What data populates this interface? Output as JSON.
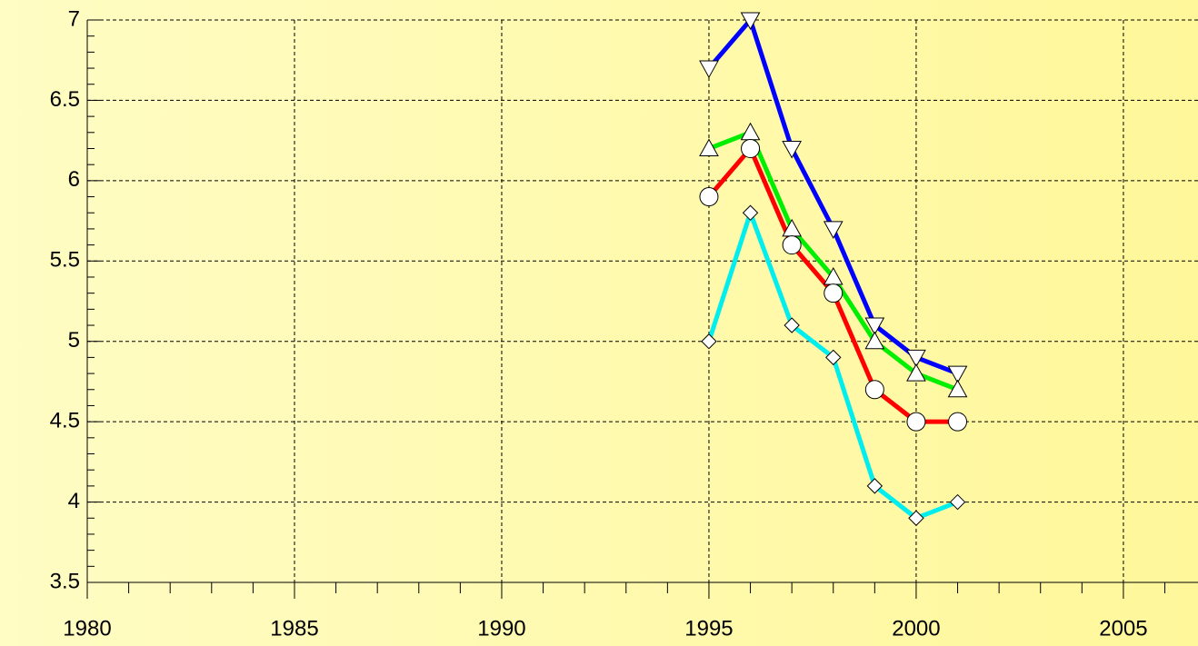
{
  "chart_data": {
    "type": "line",
    "x": [
      1995,
      1996,
      1997,
      1998,
      1999,
      2000,
      2001
    ],
    "series": [
      {
        "color": "#0000ff",
        "marker": "triangle-down",
        "values": [
          6.7,
          7.0,
          6.2,
          5.7,
          5.1,
          4.9,
          4.8
        ]
      },
      {
        "color": "#00ee00",
        "marker": "triangle-up",
        "values": [
          6.2,
          6.3,
          5.7,
          5.4,
          5.0,
          4.8,
          4.7
        ]
      },
      {
        "color": "#ff0000",
        "marker": "circle",
        "values": [
          5.9,
          6.2,
          5.6,
          5.3,
          4.7,
          4.5,
          4.5
        ]
      },
      {
        "color": "#00eeee",
        "marker": "diamond",
        "values": [
          5.0,
          5.8,
          5.1,
          4.9,
          4.1,
          3.9,
          4.0
        ]
      }
    ],
    "xlim": [
      1980,
      2006.8
    ],
    "xticks": [
      1980,
      1985,
      1990,
      1995,
      2000,
      2005
    ],
    "ylim": [
      3.5,
      7
    ],
    "yticks": [
      3.5,
      4,
      4.5,
      5,
      5.5,
      6,
      6.5,
      7
    ],
    "grid": true
  }
}
